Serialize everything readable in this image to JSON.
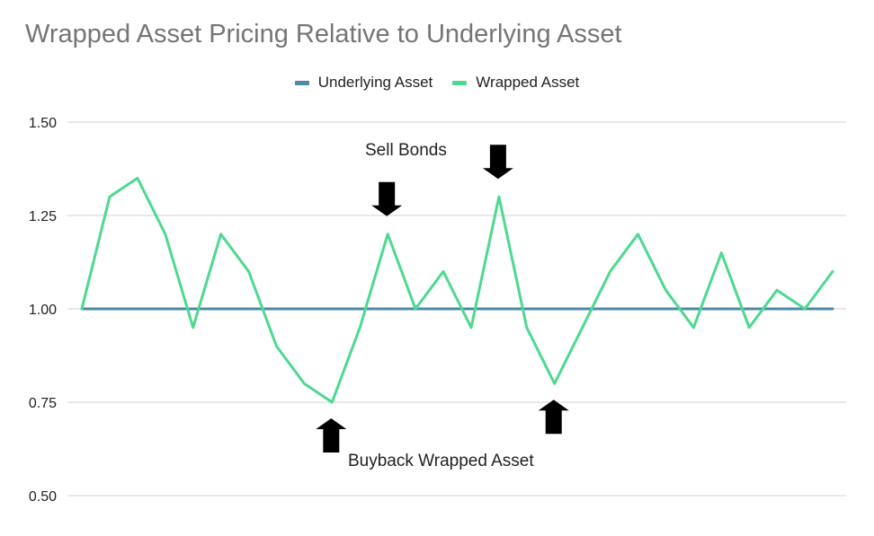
{
  "chart_data": {
    "type": "line",
    "title": "Wrapped Asset Pricing Relative to Underlying Asset",
    "xlabel": "",
    "ylabel": "",
    "ylim": [
      0.5,
      1.5
    ],
    "yticks": [
      "0.50",
      "0.75",
      "1.00",
      "1.25",
      "1.50"
    ],
    "ytick_values": [
      0.5,
      0.75,
      1.0,
      1.25,
      1.5
    ],
    "grid": true,
    "legend_placement": "top-center",
    "x": [
      1,
      2,
      3,
      4,
      5,
      6,
      7,
      8,
      9,
      10,
      11,
      12,
      13,
      14,
      15,
      16,
      17,
      18,
      19,
      20,
      21,
      22,
      23,
      24,
      25,
      26,
      27,
      28
    ],
    "series": [
      {
        "name": "Underlying Asset",
        "color": "#4a8aa8",
        "values": [
          1,
          1,
          1,
          1,
          1,
          1,
          1,
          1,
          1,
          1,
          1,
          1,
          1,
          1,
          1,
          1,
          1,
          1,
          1,
          1,
          1,
          1,
          1,
          1,
          1,
          1,
          1,
          1
        ]
      },
      {
        "name": "Wrapped Asset",
        "color": "#4dd98f",
        "values": [
          1.0,
          1.3,
          1.35,
          1.2,
          0.95,
          1.2,
          1.1,
          0.9,
          0.8,
          0.75,
          0.95,
          1.2,
          1.0,
          1.1,
          0.95,
          1.3,
          0.95,
          0.8,
          0.95,
          1.1,
          1.2,
          1.05,
          0.95,
          1.15,
          0.95,
          1.05,
          1.0,
          1.1
        ]
      }
    ],
    "annotations": [
      {
        "text": "Sell Bonds",
        "icon": "down-arrow-icon",
        "markers": [
          12,
          16
        ],
        "direction": "down"
      },
      {
        "text": "Buyback Wrapped Asset",
        "icon": "up-arrow-icon",
        "markers": [
          10,
          18
        ],
        "direction": "up"
      }
    ]
  }
}
